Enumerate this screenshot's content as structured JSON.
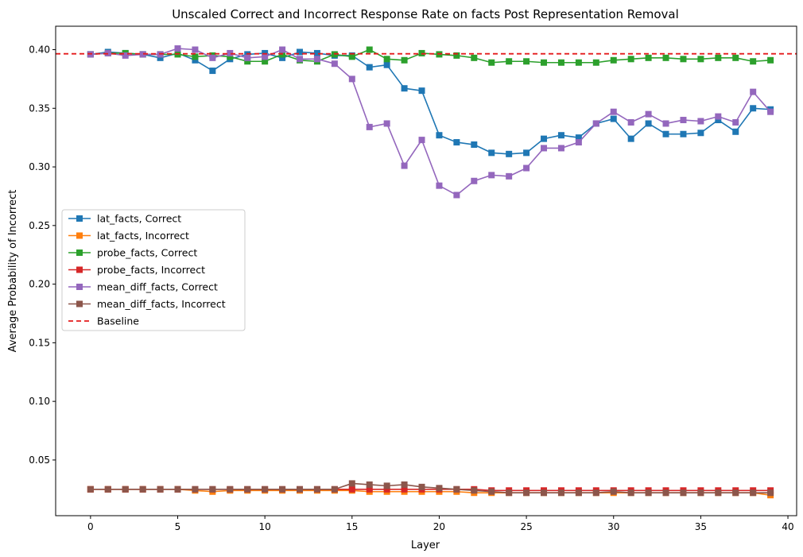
{
  "chart_data": {
    "type": "line",
    "title": "Unscaled Correct and Incorrect Response Rate on facts Post Representation Removal",
    "xlabel": "Layer",
    "ylabel": "Average Probability of Incorrect",
    "xlim": [
      -2,
      40.5
    ],
    "ylim": [
      0.0025,
      0.42
    ],
    "xticks": [
      0,
      5,
      10,
      15,
      20,
      25,
      30,
      35,
      40
    ],
    "yticks": [
      0.05,
      0.1,
      0.15,
      0.2,
      0.25,
      0.3,
      0.35,
      0.4
    ],
    "ytick_labels": [
      "0.05",
      "0.10",
      "0.15",
      "0.20",
      "0.25",
      "0.30",
      "0.35",
      "0.40"
    ],
    "grid": false,
    "legend_position": "center-left",
    "baseline": {
      "name": "Baseline",
      "value": 0.3965,
      "color": "#e41a1c"
    },
    "x": [
      0,
      1,
      2,
      3,
      4,
      5,
      6,
      7,
      8,
      9,
      10,
      11,
      12,
      13,
      14,
      15,
      16,
      17,
      18,
      19,
      20,
      21,
      22,
      23,
      24,
      25,
      26,
      27,
      28,
      29,
      30,
      31,
      32,
      33,
      34,
      35,
      36,
      37,
      38,
      39
    ],
    "series": [
      {
        "name": "lat_facts, Correct",
        "color": "#1f77b4",
        "values": [
          0.396,
          0.398,
          0.397,
          0.396,
          0.393,
          0.397,
          0.391,
          0.382,
          0.392,
          0.396,
          0.397,
          0.393,
          0.398,
          0.397,
          0.395,
          0.395,
          0.385,
          0.387,
          0.367,
          0.365,
          0.327,
          0.321,
          0.319,
          0.312,
          0.311,
          0.312,
          0.324,
          0.327,
          0.325,
          0.337,
          0.341,
          0.324,
          0.337,
          0.328,
          0.328,
          0.329,
          0.34,
          0.33,
          0.35,
          0.349
        ]
      },
      {
        "name": "lat_facts, Incorrect",
        "color": "#ff7f0e",
        "values": [
          0.025,
          0.025,
          0.025,
          0.025,
          0.025,
          0.025,
          0.024,
          0.023,
          0.024,
          0.024,
          0.024,
          0.024,
          0.024,
          0.024,
          0.024,
          0.024,
          0.023,
          0.023,
          0.023,
          0.023,
          0.023,
          0.023,
          0.022,
          0.022,
          0.022,
          0.022,
          0.022,
          0.022,
          0.022,
          0.022,
          0.022,
          0.022,
          0.022,
          0.022,
          0.022,
          0.022,
          0.022,
          0.022,
          0.022,
          0.02
        ]
      },
      {
        "name": "probe_facts, Correct",
        "color": "#2ca02c",
        "values": [
          0.396,
          0.397,
          0.397,
          0.396,
          0.396,
          0.396,
          0.394,
          0.395,
          0.394,
          0.39,
          0.39,
          0.396,
          0.391,
          0.39,
          0.396,
          0.394,
          0.4,
          0.392,
          0.391,
          0.397,
          0.396,
          0.395,
          0.393,
          0.389,
          0.39,
          0.39,
          0.389,
          0.389,
          0.389,
          0.389,
          0.391,
          0.392,
          0.393,
          0.393,
          0.392,
          0.392,
          0.393,
          0.393,
          0.39,
          0.391
        ]
      },
      {
        "name": "probe_facts, Incorrect",
        "color": "#d62728",
        "values": [
          0.025,
          0.025,
          0.025,
          0.025,
          0.025,
          0.025,
          0.025,
          0.025,
          0.025,
          0.025,
          0.025,
          0.025,
          0.025,
          0.025,
          0.025,
          0.025,
          0.025,
          0.025,
          0.025,
          0.025,
          0.025,
          0.025,
          0.025,
          0.024,
          0.024,
          0.024,
          0.024,
          0.024,
          0.024,
          0.024,
          0.024,
          0.024,
          0.024,
          0.024,
          0.024,
          0.024,
          0.024,
          0.024,
          0.024,
          0.024
        ]
      },
      {
        "name": "mean_diff_facts, Correct",
        "color": "#9467bd",
        "values": [
          0.396,
          0.397,
          0.395,
          0.396,
          0.396,
          0.401,
          0.4,
          0.393,
          0.397,
          0.393,
          0.394,
          0.4,
          0.392,
          0.392,
          0.388,
          0.375,
          0.334,
          0.337,
          0.301,
          0.323,
          0.284,
          0.276,
          0.288,
          0.293,
          0.292,
          0.299,
          0.316,
          0.316,
          0.321,
          0.337,
          0.347,
          0.338,
          0.345,
          0.337,
          0.34,
          0.339,
          0.343,
          0.338,
          0.364,
          0.347
        ]
      },
      {
        "name": "mean_diff_facts, Incorrect",
        "color": "#8c564b",
        "values": [
          0.025,
          0.025,
          0.025,
          0.025,
          0.025,
          0.025,
          0.025,
          0.025,
          0.025,
          0.025,
          0.025,
          0.025,
          0.025,
          0.025,
          0.025,
          0.03,
          0.029,
          0.028,
          0.029,
          0.027,
          0.026,
          0.025,
          0.024,
          0.023,
          0.022,
          0.022,
          0.022,
          0.022,
          0.022,
          0.022,
          0.023,
          0.022,
          0.022,
          0.022,
          0.022,
          0.022,
          0.022,
          0.022,
          0.022,
          0.022
        ]
      }
    ]
  }
}
